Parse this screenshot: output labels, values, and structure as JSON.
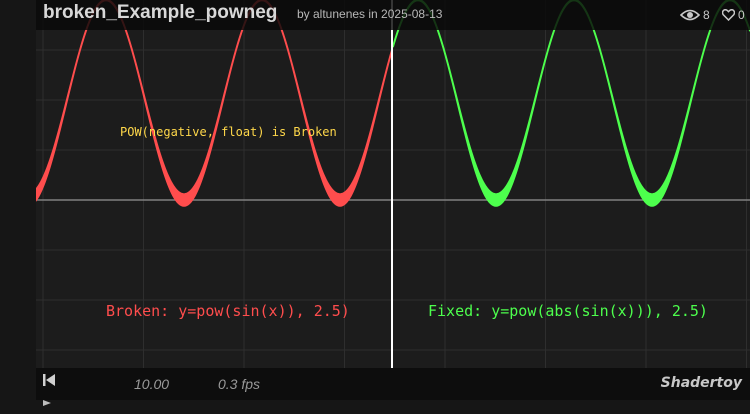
{
  "shader": {
    "title": "broken_Example_powneg",
    "meta": "by altunenes in 2025-08-13",
    "views": "8",
    "likes": "0"
  },
  "canvas": {
    "notice": "POW(negative, float) is Broken",
    "broken_label": "Broken: y=pow(sin(x)), 2.5)",
    "fixed_label": "Fixed: y=pow(abs(sin(x))), 2.5)",
    "colors": {
      "broken": "#ff4d4d",
      "fixed": "#4dff4d",
      "notice": "#ffd84a",
      "background": "#1c1c1c",
      "grid": "#2e2e2e",
      "axis": "#808080",
      "divider": "#ffffff"
    }
  },
  "controls": {
    "time": "10.00",
    "fps": "0.3 fps",
    "brand": "Shadertoy"
  },
  "icons": {
    "views": "eye-icon",
    "likes": "heart-icon",
    "rewind": "rewind-icon"
  }
}
